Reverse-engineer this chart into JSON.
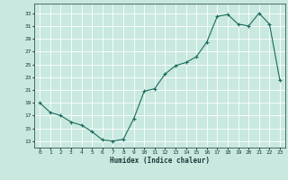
{
  "x": [
    0,
    1,
    2,
    3,
    4,
    5,
    6,
    7,
    8,
    9,
    10,
    11,
    12,
    13,
    14,
    15,
    16,
    17,
    18,
    19,
    20,
    21,
    22,
    23
  ],
  "y": [
    19,
    17.5,
    17,
    16,
    15.5,
    14.5,
    13.2,
    13,
    13.3,
    16.5,
    20.8,
    21.2,
    23.5,
    24.8,
    25.3,
    26.2,
    28.5,
    32.5,
    32.8,
    31.3,
    31,
    33,
    31.3,
    22.5
  ],
  "xlabel": "Humidex (Indice chaleur)",
  "xlim": [
    -0.5,
    23.5
  ],
  "ylim": [
    12,
    34.5
  ],
  "yticks": [
    13,
    15,
    17,
    19,
    21,
    23,
    25,
    27,
    29,
    31,
    33
  ],
  "xticks": [
    0,
    1,
    2,
    3,
    4,
    5,
    6,
    7,
    8,
    9,
    10,
    11,
    12,
    13,
    14,
    15,
    16,
    17,
    18,
    19,
    20,
    21,
    22,
    23
  ],
  "line_color": "#1a6b5e",
  "bg_color": "#c8e8e0",
  "grid_color": "#ffffff",
  "font_color": "#1a3a3a"
}
